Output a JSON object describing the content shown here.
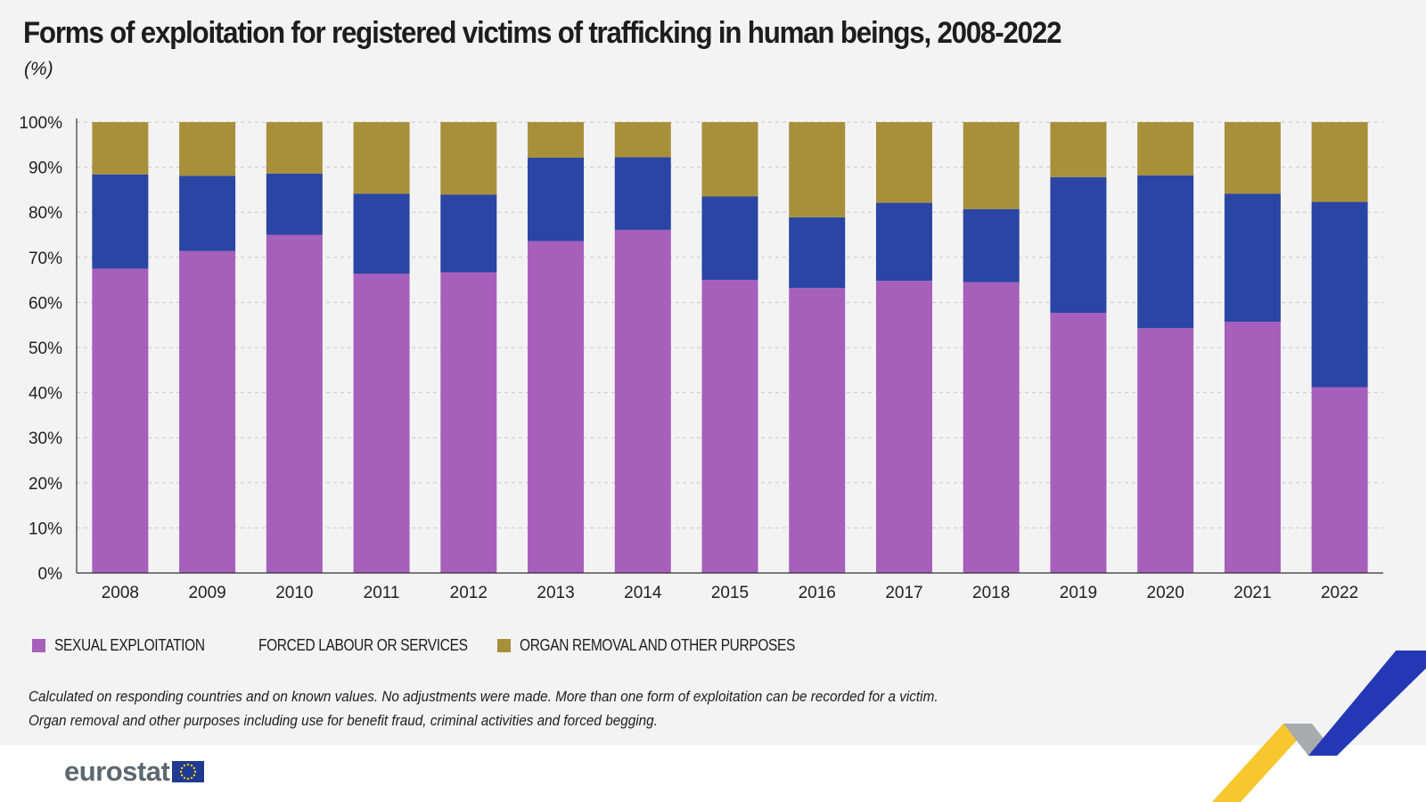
{
  "header": {
    "title": "Forms of exploitation for registered victims of trafficking in human beings, 2008-2022",
    "unit": "(%)"
  },
  "colors": {
    "sexual": "#a65fbb",
    "forced": "#2a45a3",
    "organ": "#a8903b",
    "grid": "#c9c9c9",
    "axis": "#333333"
  },
  "legend": [
    {
      "label": "Sexual exploitation",
      "color": "#a65fbb"
    },
    {
      "label": "Forced labour or services",
      "color": "#2a45a3"
    },
    {
      "label": "Organ removal and other purposes",
      "color": "#a8903b"
    }
  ],
  "notes": {
    "line1": "Calculated on responding countries and on known values. No adjustments were made. More than one form of exploitation can be recorded for a victim.",
    "line2": "Organ removal and other purposes including use for benefit fraud, criminal activities and forced begging."
  },
  "footer": {
    "logo_text": "eurostat"
  },
  "chart_data": {
    "type": "bar",
    "stacked": true,
    "categories": [
      "2008",
      "2009",
      "2010",
      "2011",
      "2012",
      "2013",
      "2014",
      "2015",
      "2016",
      "2017",
      "2018",
      "2019",
      "2020",
      "2021",
      "2022"
    ],
    "series": [
      {
        "name": "Sexual exploitation",
        "color": "#a65fbb",
        "values": [
          67.5,
          71.4,
          75.0,
          66.4,
          66.7,
          73.6,
          76.1,
          65.0,
          63.2,
          64.8,
          64.5,
          57.7,
          54.3,
          55.7,
          41.2
        ]
      },
      {
        "name": "Forced labour or services",
        "color": "#2a45a3",
        "values": [
          20.9,
          16.7,
          13.6,
          17.7,
          17.2,
          18.5,
          16.1,
          18.5,
          15.7,
          17.3,
          16.2,
          30.1,
          33.9,
          28.4,
          41.1
        ]
      },
      {
        "name": "Organ removal and other purposes",
        "color": "#a8903b",
        "values": [
          11.6,
          11.9,
          11.4,
          15.9,
          16.1,
          7.9,
          7.8,
          16.5,
          21.1,
          17.9,
          19.3,
          12.2,
          11.8,
          15.9,
          17.7
        ]
      }
    ],
    "yticks": [
      "0%",
      "10%",
      "20%",
      "30%",
      "40%",
      "50%",
      "60%",
      "70%",
      "80%",
      "90%",
      "100%"
    ],
    "ylim": [
      0,
      100
    ],
    "grid": true,
    "legend_position": "bottom-left"
  }
}
